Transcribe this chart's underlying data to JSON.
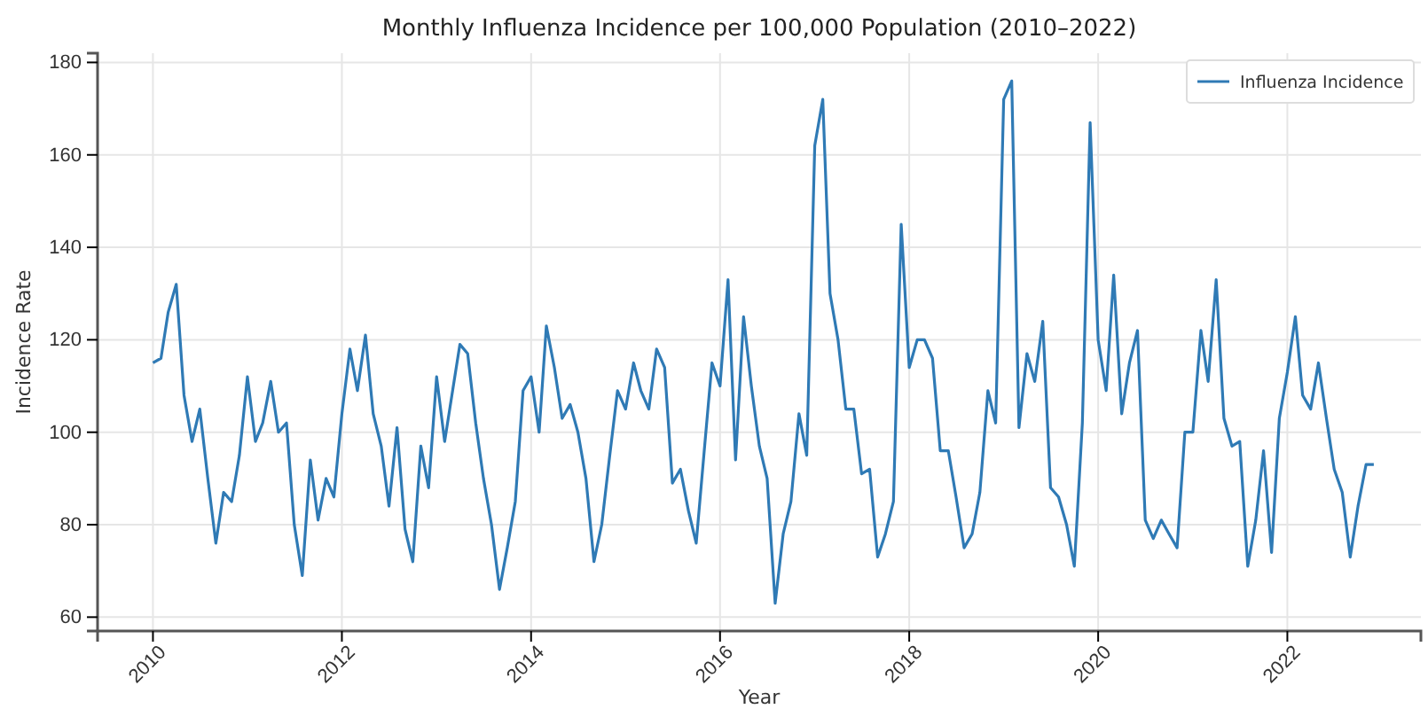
{
  "chart_data": {
    "type": "line",
    "title": "Monthly Influenza Incidence per 100,000 Population (2010–2022)",
    "xlabel": "Year",
    "ylabel": "Incidence Rate",
    "x": [
      "2010-01",
      "2010-02",
      "2010-03",
      "2010-04",
      "2010-05",
      "2010-06",
      "2010-07",
      "2010-08",
      "2010-09",
      "2010-10",
      "2010-11",
      "2010-12",
      "2011-01",
      "2011-02",
      "2011-03",
      "2011-04",
      "2011-05",
      "2011-06",
      "2011-07",
      "2011-08",
      "2011-09",
      "2011-10",
      "2011-11",
      "2011-12",
      "2012-01",
      "2012-02",
      "2012-03",
      "2012-04",
      "2012-05",
      "2012-06",
      "2012-07",
      "2012-08",
      "2012-09",
      "2012-10",
      "2012-11",
      "2012-12",
      "2013-01",
      "2013-02",
      "2013-03",
      "2013-04",
      "2013-05",
      "2013-06",
      "2013-07",
      "2013-08",
      "2013-09",
      "2013-10",
      "2013-11",
      "2013-12",
      "2014-01",
      "2014-02",
      "2014-03",
      "2014-04",
      "2014-05",
      "2014-06",
      "2014-07",
      "2014-08",
      "2014-09",
      "2014-10",
      "2014-11",
      "2014-12",
      "2015-01",
      "2015-02",
      "2015-03",
      "2015-04",
      "2015-05",
      "2015-06",
      "2015-07",
      "2015-08",
      "2015-09",
      "2015-10",
      "2015-11",
      "2015-12",
      "2016-01",
      "2016-02",
      "2016-03",
      "2016-04",
      "2016-05",
      "2016-06",
      "2016-07",
      "2016-08",
      "2016-09",
      "2016-10",
      "2016-11",
      "2016-12",
      "2017-01",
      "2017-02",
      "2017-03",
      "2017-04",
      "2017-05",
      "2017-06",
      "2017-07",
      "2017-08",
      "2017-09",
      "2017-10",
      "2017-11",
      "2017-12",
      "2018-01",
      "2018-02",
      "2018-03",
      "2018-04",
      "2018-05",
      "2018-06",
      "2018-07",
      "2018-08",
      "2018-09",
      "2018-10",
      "2018-11",
      "2018-12",
      "2019-01",
      "2019-02",
      "2019-03",
      "2019-04",
      "2019-05",
      "2019-06",
      "2019-07",
      "2019-08",
      "2019-09",
      "2019-10",
      "2019-11",
      "2019-12",
      "2020-01",
      "2020-02",
      "2020-03",
      "2020-04",
      "2020-05",
      "2020-06",
      "2020-07",
      "2020-08",
      "2020-09",
      "2020-10",
      "2020-11",
      "2020-12",
      "2021-01",
      "2021-02",
      "2021-03",
      "2021-04",
      "2021-05",
      "2021-06",
      "2021-07",
      "2021-08",
      "2021-09",
      "2021-10",
      "2021-11",
      "2021-12",
      "2022-01",
      "2022-02",
      "2022-03",
      "2022-04",
      "2022-05",
      "2022-06",
      "2022-07",
      "2022-08",
      "2022-09",
      "2022-10",
      "2022-11",
      "2022-12"
    ],
    "series": [
      {
        "name": "Influenza Incidence",
        "color": "#2f7ab5",
        "values": [
          115,
          116,
          126,
          132,
          108,
          98,
          105,
          90,
          76,
          87,
          85,
          95,
          112,
          98,
          102,
          111,
          100,
          102,
          80,
          69,
          94,
          81,
          90,
          86,
          104,
          118,
          109,
          121,
          104,
          97,
          84,
          101,
          79,
          72,
          97,
          88,
          112,
          98,
          108,
          119,
          117,
          102,
          90,
          80,
          66,
          75,
          85,
          109,
          112,
          100,
          123,
          114,
          103,
          106,
          100,
          90,
          72,
          80,
          95,
          109,
          105,
          115,
          109,
          105,
          118,
          114,
          89,
          92,
          83,
          76,
          96,
          115,
          110,
          133,
          94,
          125,
          110,
          97,
          90,
          63,
          78,
          85,
          104,
          95,
          162,
          172,
          130,
          120,
          105,
          105,
          91,
          92,
          73,
          78,
          85,
          145,
          114,
          120,
          120,
          116,
          96,
          96,
          86,
          75,
          78,
          87,
          109,
          102,
          172,
          176,
          101,
          117,
          111,
          124,
          88,
          86,
          80,
          71,
          102,
          167,
          120,
          109,
          134,
          104,
          115,
          122,
          81,
          77,
          81,
          78,
          75,
          100,
          100,
          122,
          111,
          133,
          103,
          97,
          98,
          71,
          81,
          96,
          74,
          103,
          113,
          125,
          108,
          105,
          115,
          103,
          92,
          87,
          73,
          84,
          93,
          93
        ]
      }
    ],
    "xlim": [
      "2009-06-01",
      "2023-06-01"
    ],
    "xticks": [
      "2010",
      "2012",
      "2014",
      "2016",
      "2018",
      "2020",
      "2022"
    ],
    "ylim": [
      57,
      182
    ],
    "yticks": [
      60,
      80,
      100,
      120,
      140,
      160,
      180
    ],
    "grid": true,
    "legend": "top right",
    "marker": "none",
    "line_style": "solid"
  }
}
